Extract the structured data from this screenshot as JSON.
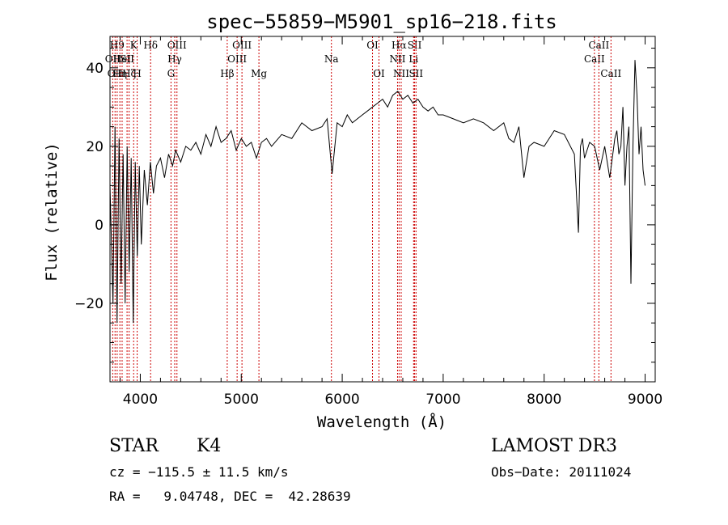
{
  "chart_data": {
    "type": "line",
    "title": "spec−55859−M5901_sp16−218.fits",
    "xlabel": "Wavelength (Å)",
    "ylabel": "Flux (relative)",
    "xlim": [
      3700,
      9100
    ],
    "ylim": [
      -40,
      48
    ],
    "x_ticks": [
      4000,
      5000,
      6000,
      7000,
      8000,
      9000
    ],
    "x_tick_labels": [
      "4000",
      "5000",
      "6000",
      "7000",
      "8000",
      "9000"
    ],
    "y_ticks": [
      -20,
      0,
      20,
      40
    ],
    "y_tick_labels": [
      "−20",
      "0",
      "20",
      "40"
    ],
    "series": [
      {
        "name": "flux",
        "x": [
          3700,
          3730,
          3750,
          3770,
          3790,
          3810,
          3830,
          3850,
          3870,
          3890,
          3910,
          3930,
          3950,
          3970,
          3990,
          4010,
          4040,
          4070,
          4100,
          4130,
          4160,
          4200,
          4240,
          4280,
          4320,
          4350,
          4400,
          4450,
          4500,
          4550,
          4600,
          4650,
          4700,
          4750,
          4800,
          4850,
          4900,
          4950,
          5000,
          5050,
          5100,
          5150,
          5200,
          5250,
          5300,
          5400,
          5500,
          5600,
          5700,
          5800,
          5850,
          5900,
          5950,
          6000,
          6050,
          6100,
          6150,
          6200,
          6250,
          6300,
          6350,
          6400,
          6450,
          6500,
          6550,
          6600,
          6650,
          6700,
          6750,
          6800,
          6850,
          6900,
          6950,
          7000,
          7100,
          7200,
          7300,
          7400,
          7500,
          7600,
          7650,
          7700,
          7750,
          7800,
          7850,
          7900,
          8000,
          8100,
          8200,
          8300,
          8340,
          8360,
          8380,
          8400,
          8450,
          8500,
          8550,
          8600,
          8650,
          8700,
          8720,
          8740,
          8760,
          8780,
          8800,
          8820,
          8840,
          8860,
          8880,
          8900,
          8920,
          8940,
          8960,
          8980,
          9000
        ],
        "y": [
          10,
          -20,
          25,
          -25,
          22,
          -15,
          18,
          -20,
          20,
          -12,
          17,
          -25,
          16,
          -8,
          15,
          -5,
          14,
          5,
          16,
          8,
          15,
          17,
          12,
          18,
          15,
          19,
          16,
          20,
          19,
          21,
          18,
          23,
          20,
          25,
          21,
          22,
          24,
          19,
          22,
          20,
          21,
          17,
          21,
          22,
          20,
          23,
          22,
          26,
          24,
          25,
          27,
          13,
          26,
          25,
          28,
          26,
          27,
          28,
          29,
          30,
          31,
          32,
          30,
          33,
          34,
          32,
          33,
          31,
          32,
          30,
          29,
          30,
          28,
          28,
          27,
          26,
          27,
          26,
          24,
          26,
          22,
          21,
          25,
          12,
          20,
          21,
          20,
          24,
          23,
          18,
          -2,
          20,
          22,
          17,
          21,
          20,
          14,
          20,
          12,
          22,
          24,
          18,
          20,
          30,
          10,
          20,
          25,
          -15,
          20,
          42,
          33,
          18,
          25,
          14,
          10
        ]
      }
    ],
    "lines": [
      {
        "lambda": 3727,
        "label": "OII",
        "row": 2
      },
      {
        "lambda": 3750,
        "label": "OII",
        "row": 3
      },
      {
        "lambda": 3771,
        "label": "H9",
        "row": 1
      },
      {
        "lambda": 3798,
        "label": "Hη",
        "row": 3
      },
      {
        "lambda": 3820,
        "label": "HeI",
        "row": 2
      },
      {
        "lambda": 3869,
        "label": "SII",
        "row": 2
      },
      {
        "lambda": 3889,
        "label": "Hζ",
        "row": 3
      },
      {
        "lambda": 3934,
        "label": "K",
        "row": 1
      },
      {
        "lambda": 3969,
        "label": "H",
        "row": 3
      },
      {
        "lambda": 4102,
        "label": "Hδ",
        "row": 1
      },
      {
        "lambda": 4304,
        "label": "G",
        "row": 3
      },
      {
        "lambda": 4341,
        "label": "Hγ",
        "row": 2
      },
      {
        "lambda": 4363,
        "label": "OIII",
        "row": 1
      },
      {
        "lambda": 4861,
        "label": "Hβ",
        "row": 3
      },
      {
        "lambda": 4959,
        "label": "OIII",
        "row": 2
      },
      {
        "lambda": 5007,
        "label": "OIII",
        "row": 1
      },
      {
        "lambda": 5175,
        "label": "Mg",
        "row": 3
      },
      {
        "lambda": 5893,
        "label": "Na",
        "row": 2
      },
      {
        "lambda": 6300,
        "label": "OI",
        "row": 1
      },
      {
        "lambda": 6364,
        "label": "OI",
        "row": 3
      },
      {
        "lambda": 6548,
        "label": "NII",
        "row": 2
      },
      {
        "lambda": 6563,
        "label": "Hα",
        "row": 1
      },
      {
        "lambda": 6584,
        "label": "NII",
        "row": 3
      },
      {
        "lambda": 6707,
        "label": "Li",
        "row": 2
      },
      {
        "lambda": 6717,
        "label": "SII",
        "row": 1
      },
      {
        "lambda": 6731,
        "label": "SII",
        "row": 3
      },
      {
        "lambda": 8498,
        "label": "CaII",
        "row": 2
      },
      {
        "lambda": 8542,
        "label": "CaII",
        "row": 1
      },
      {
        "lambda": 8662,
        "label": "CaII",
        "row": 3
      }
    ]
  },
  "info": {
    "class": "STAR",
    "subclass": "K4",
    "velocity": "cz = −115.5 ± 11.5 km/s",
    "coords": "RA =   9.04748, DEC =  42.28639",
    "survey": "LAMOST DR3",
    "obs_date": "Obs−Date: 20111024"
  }
}
